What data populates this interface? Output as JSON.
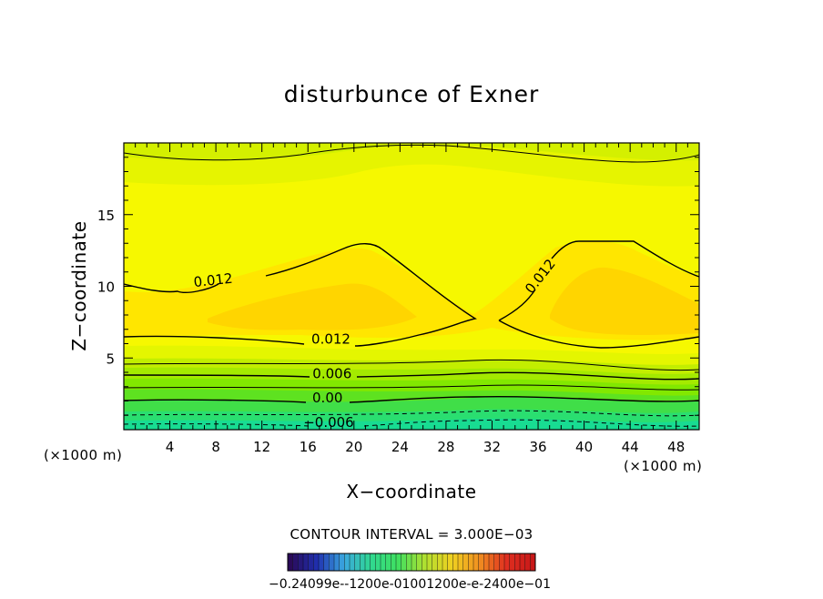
{
  "chart_data": {
    "type": "contour",
    "title": "disturbunce of Exner",
    "xlabel": "X−coordinate",
    "ylabel": "Z−coordinate",
    "x_unit_label": "(×1000 m)",
    "y_unit_label": "(×1000 m)",
    "xlim": [
      0,
      50
    ],
    "ylim": [
      0,
      20
    ],
    "x_ticks": [
      4,
      8,
      12,
      16,
      20,
      24,
      28,
      32,
      36,
      40,
      44,
      48
    ],
    "y_ticks": [
      5,
      10,
      15
    ],
    "x_minor_step": 1,
    "y_minor_step": 1,
    "contour_interval_text": "CONTOUR INTERVAL = 3.000E−03",
    "contour_labels": [
      {
        "text": "0.012",
        "x": 7.8,
        "z": 10.1
      },
      {
        "text": "0.012",
        "x": 36.5,
        "z": 10.5
      },
      {
        "text": "0.012",
        "x": 18.0,
        "z": 6.0
      },
      {
        "text": "0.006",
        "x": 18.1,
        "z": 3.6
      },
      {
        "text": "0.00",
        "x": 17.7,
        "z": 1.9
      },
      {
        "text": "−0.006",
        "x": 17.8,
        "z": 0.2
      }
    ],
    "colorbar_labels_text": "−0.24099e-‐1200e-01001200e‐e-2400e−01",
    "colormap": [
      "#2a0a58",
      "#2030b0",
      "#3aa8e0",
      "#30d890",
      "#40e060",
      "#b0e030",
      "#f0d020",
      "#f09020",
      "#e03020",
      "#c81818"
    ],
    "field_colors": {
      "orange": "#ffd500",
      "yellow_orange": "#ffe600",
      "yellow": "#f6f800",
      "yellow_green": "#d4f000",
      "light_green": "#b4ea00",
      "green": "#7ee800",
      "deep_green": "#3ee048",
      "teal": "#1ee090"
    }
  }
}
